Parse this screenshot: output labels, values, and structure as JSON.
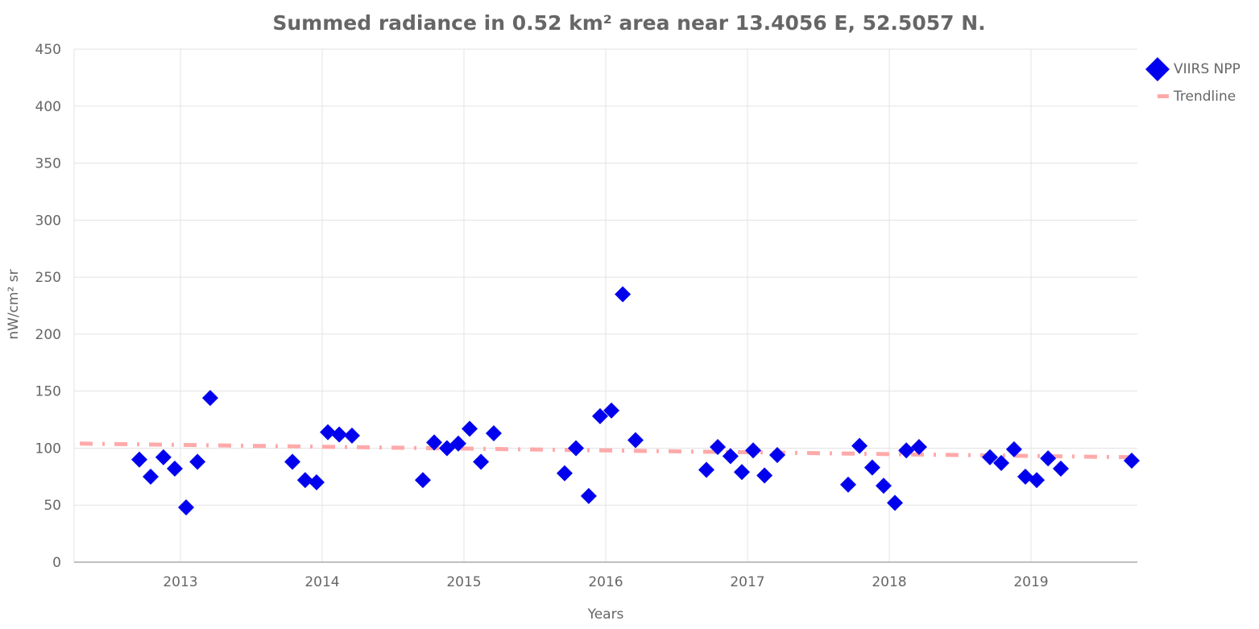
{
  "chart_data": {
    "type": "scatter",
    "title": "Summed radiance in 0.52 km² area near 13.4056 E, 52.5057 N.",
    "xlabel": "Years",
    "ylabel": "nW/cm² sr",
    "xlim": [
      2012.25,
      2019.75
    ],
    "ylim": [
      0,
      450
    ],
    "grid": true,
    "legend_position": "top-right",
    "x_ticks": [
      2013,
      2014,
      2015,
      2016,
      2017,
      2018,
      2019
    ],
    "x_tick_labels": [
      "2013",
      "2014",
      "2015",
      "2016",
      "2017",
      "2018",
      "2019"
    ],
    "y_ticks": [
      0,
      50,
      100,
      150,
      200,
      250,
      300,
      350,
      400,
      450
    ],
    "y_tick_labels": [
      "0",
      "50",
      "100",
      "150",
      "200",
      "250",
      "300",
      "350",
      "400",
      "450"
    ],
    "series": [
      {
        "name": "VIIRS NPP",
        "kind": "scatter",
        "marker": "diamond",
        "color": "#0000ee",
        "points": [
          [
            2012.71,
            90
          ],
          [
            2012.79,
            75
          ],
          [
            2012.88,
            92
          ],
          [
            2012.96,
            82
          ],
          [
            2013.04,
            48
          ],
          [
            2013.12,
            88
          ],
          [
            2013.21,
            144
          ],
          [
            2013.79,
            88
          ],
          [
            2013.88,
            72
          ],
          [
            2013.96,
            70
          ],
          [
            2014.04,
            114
          ],
          [
            2014.12,
            112
          ],
          [
            2014.21,
            111
          ],
          [
            2014.71,
            72
          ],
          [
            2014.79,
            105
          ],
          [
            2014.88,
            100
          ],
          [
            2014.96,
            104
          ],
          [
            2015.04,
            117
          ],
          [
            2015.12,
            88
          ],
          [
            2015.21,
            113
          ],
          [
            2015.71,
            78
          ],
          [
            2015.79,
            100
          ],
          [
            2015.88,
            58
          ],
          [
            2015.96,
            128
          ],
          [
            2016.04,
            133
          ],
          [
            2016.12,
            235
          ],
          [
            2016.21,
            107
          ],
          [
            2016.71,
            81
          ],
          [
            2016.79,
            101
          ],
          [
            2016.88,
            93
          ],
          [
            2016.96,
            79
          ],
          [
            2017.04,
            98
          ],
          [
            2017.12,
            76
          ],
          [
            2017.21,
            94
          ],
          [
            2017.71,
            68
          ],
          [
            2017.79,
            102
          ],
          [
            2017.88,
            83
          ],
          [
            2017.96,
            67
          ],
          [
            2018.04,
            52
          ],
          [
            2018.12,
            98
          ],
          [
            2018.21,
            101
          ],
          [
            2018.71,
            92
          ],
          [
            2018.79,
            87
          ],
          [
            2018.88,
            99
          ],
          [
            2018.96,
            75
          ],
          [
            2019.04,
            72
          ],
          [
            2019.12,
            91
          ],
          [
            2019.21,
            82
          ],
          [
            2019.71,
            89
          ]
        ]
      },
      {
        "name": "Trendline",
        "kind": "line",
        "style": "dashdot",
        "color": "#ffaaaa",
        "x": [
          2012.29,
          2019.71
        ],
        "y": [
          104,
          92
        ]
      }
    ]
  }
}
